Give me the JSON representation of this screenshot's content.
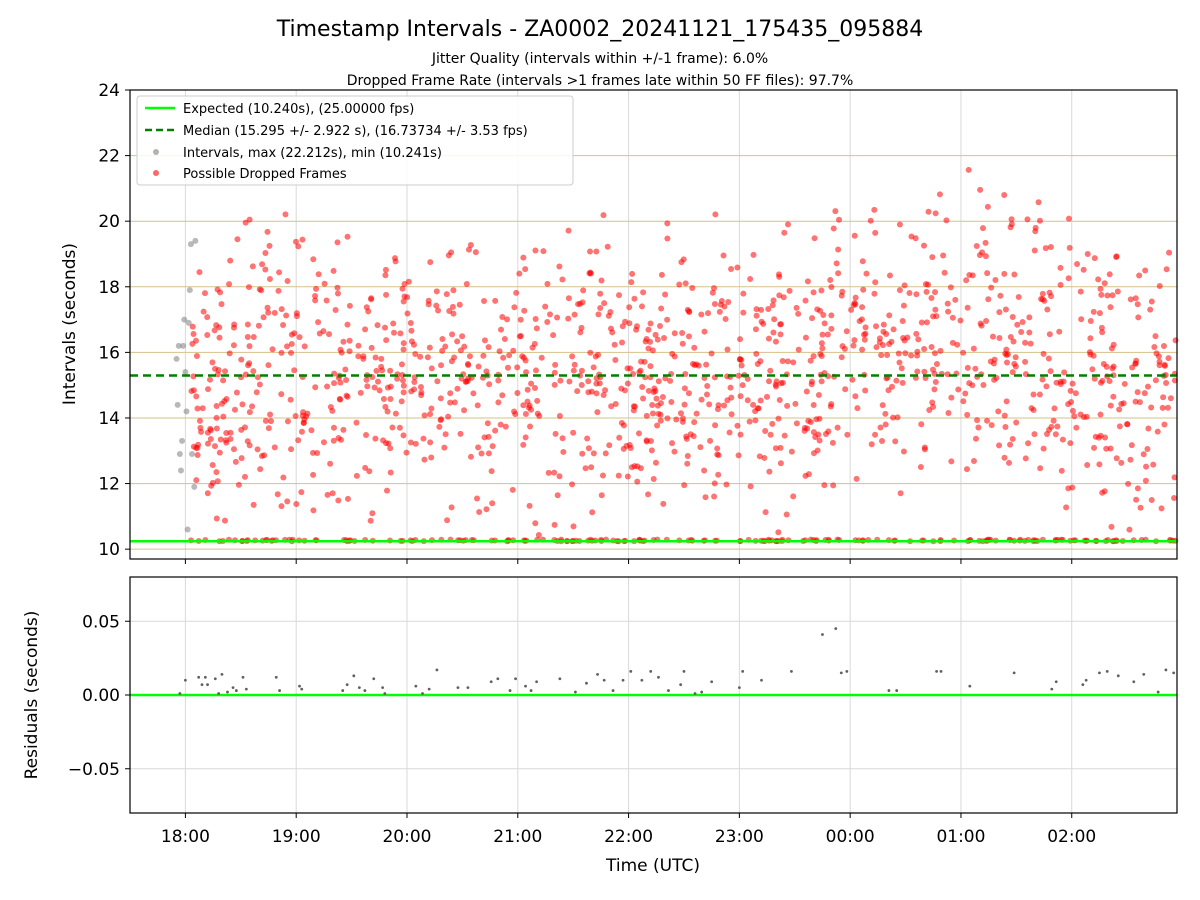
{
  "chart_data": {
    "type": "scatter",
    "title": "Timestamp Intervals - ZA0002_20241121_175435_095884",
    "subtitle_lines": [
      "Jitter Quality (intervals within +/-1 frame): 6.0%",
      "Dropped Frame Rate (intervals >1 frames late within 50 FF files): 97.7%"
    ],
    "xlabel": "Time (UTC)",
    "xtick_labels": [
      "18:00",
      "19:00",
      "20:00",
      "21:00",
      "22:00",
      "23:00",
      "00:00",
      "01:00",
      "02:00"
    ],
    "xlim_hours": [
      17.5,
      26.95
    ],
    "grid": true,
    "legend_position": "upper-left",
    "panels": [
      {
        "name": "intervals",
        "ylabel": "Intervals (seconds)",
        "ylim": [
          9.7,
          24
        ],
        "yticks": [
          10,
          12,
          14,
          16,
          18,
          20,
          22,
          24
        ],
        "ytick_labels": [
          "10",
          "12",
          "14",
          "16",
          "18",
          "20",
          "22",
          "24"
        ],
        "expected_value": 10.24,
        "median_value": 15.295,
        "legend": [
          {
            "label": "Expected (10.240s), (25.00000 fps)",
            "color": "#00ff00",
            "style": "solid-line"
          },
          {
            "label": "Median (15.295 +/- 2.922 s), (16.73734 +/- 3.53 fps)",
            "color": "#008000",
            "style": "dashed-line"
          },
          {
            "label": "Intervals, max (22.212s), min (10.241s)",
            "color": "#808080",
            "style": "dot"
          },
          {
            "label": "Possible Dropped Frames",
            "color": "#ff0000",
            "style": "dot"
          }
        ],
        "series": [
          {
            "name": "Intervals, max (22.212s), min (10.241s)",
            "color": "#808080",
            "x_hours": [
              17.92,
              17.93,
              17.94,
              17.95,
              17.96,
              17.97,
              17.98,
              17.99,
              18.0,
              18.01,
              18.02,
              18.03,
              18.04,
              18.05,
              18.06,
              18.08,
              18.09
            ],
            "y": [
              15.8,
              14.4,
              16.2,
              12.9,
              12.4,
              13.3,
              16.2,
              17.0,
              15.4,
              14.2,
              10.6,
              16.9,
              17.9,
              19.3,
              12.9,
              11.9,
              19.4
            ]
          },
          {
            "name": "Possible Dropped Frames",
            "color": "#ff0000",
            "x_start_hours": 18.05,
            "x_end_hours": 26.95,
            "count": 1500,
            "floor_value": 10.24
          }
        ]
      },
      {
        "name": "residuals",
        "ylabel": "Residuals (seconds)",
        "ylim": [
          -0.08,
          0.08
        ],
        "yticks": [
          0.05,
          0.0,
          -0.05
        ],
        "ytick_labels": [
          "0.05",
          "0.00",
          "−0.05"
        ],
        "zero_line_color": "#00ff00",
        "series": [
          {
            "name": "Residuals",
            "color": "#606060",
            "x_hours": [
              17.95,
              18.0,
              18.12,
              18.15,
              18.18,
              18.2,
              18.27,
              18.3,
              18.33,
              18.38,
              18.43,
              18.46,
              18.52,
              18.55,
              18.82,
              18.85,
              19.03,
              19.05,
              19.42,
              19.46,
              19.52,
              19.57,
              19.62,
              19.7,
              19.78,
              19.8,
              20.08,
              20.14,
              20.2,
              20.27,
              20.46,
              20.55,
              20.76,
              20.82,
              20.93,
              20.98,
              21.07,
              21.12,
              21.17,
              21.38,
              21.52,
              21.62,
              21.72,
              21.78,
              21.86,
              21.95,
              22.02,
              22.12,
              22.2,
              22.27,
              22.36,
              22.47,
              22.5,
              22.6,
              22.66,
              22.75,
              23.0,
              23.03,
              23.2,
              23.47,
              23.75,
              23.87,
              23.92,
              23.97,
              24.35,
              24.42,
              24.78,
              24.82,
              25.08,
              25.48,
              25.82,
              25.86,
              26.1,
              26.13,
              26.25,
              26.32,
              26.42,
              26.56,
              26.65,
              26.78,
              26.85,
              26.92
            ],
            "y": [
              0.001,
              0.01,
              0.012,
              0.007,
              0.012,
              0.007,
              0.011,
              0.001,
              0.014,
              0.002,
              0.005,
              0.003,
              0.012,
              0.004,
              0.012,
              0.003,
              0.006,
              0.004,
              0.003,
              0.007,
              0.013,
              0.005,
              0.003,
              0.011,
              0.005,
              0.001,
              0.006,
              0.001,
              0.004,
              0.017,
              0.005,
              0.005,
              0.009,
              0.011,
              0.003,
              0.011,
              0.006,
              0.003,
              0.009,
              0.011,
              0.002,
              0.008,
              0.014,
              0.01,
              0.003,
              0.01,
              0.016,
              0.01,
              0.016,
              0.012,
              0.003,
              0.007,
              0.016,
              0.001,
              0.002,
              0.009,
              0.005,
              0.016,
              0.01,
              0.016,
              0.041,
              0.045,
              0.015,
              0.016,
              0.003,
              0.003,
              0.016,
              0.016,
              0.006,
              0.015,
              0.004,
              0.009,
              0.007,
              0.01,
              0.015,
              0.016,
              0.013,
              0.009,
              0.014,
              0.002,
              0.017,
              0.015
            ]
          }
        ]
      }
    ]
  }
}
